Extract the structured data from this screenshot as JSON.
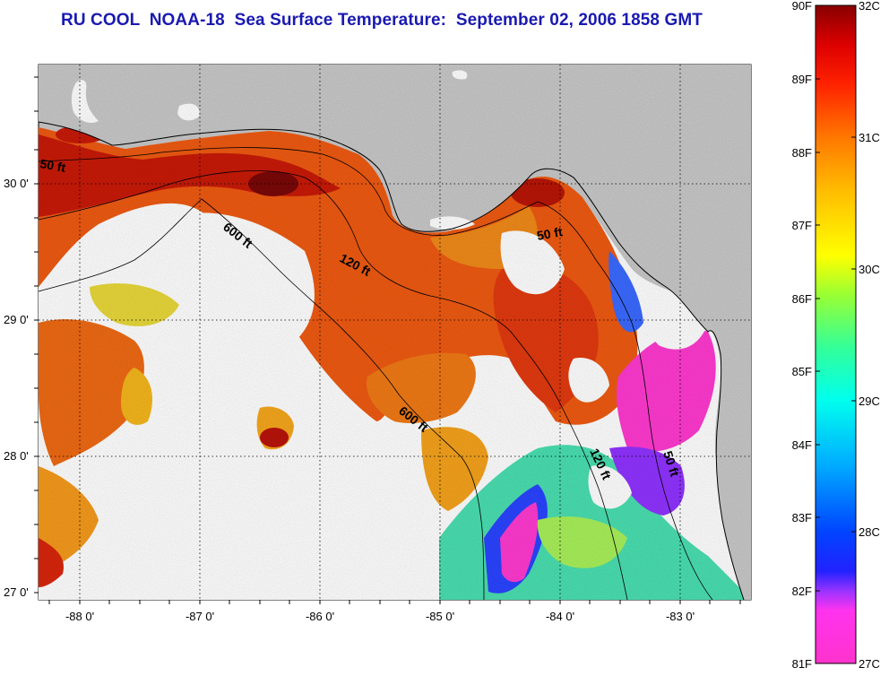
{
  "title": "RU COOL  NOAA-18  Sea Surface Temperature:  September 02, 2006 1858 GMT",
  "axes": {
    "lat_labels": [
      "30 0'",
      "29 0'",
      "28 0'",
      "27 0'"
    ],
    "lat_values": [
      30,
      29,
      28,
      27
    ],
    "lon_labels": [
      "-88 0'",
      "-87 0'",
      "-86 0'",
      "-85 0'",
      "-84 0'",
      "-83 0'"
    ],
    "lon_values": [
      -88,
      -87,
      -86,
      -85,
      -84,
      -83
    ],
    "lat_range": [
      26.97,
      30.95
    ],
    "lon_range": [
      -88.3,
      -82.4
    ]
  },
  "contours": [
    {
      "label": "50 ft"
    },
    {
      "label": "600 ft"
    },
    {
      "label": "120 ft"
    },
    {
      "label": "50 ft"
    },
    {
      "label": "600 ft"
    },
    {
      "label": "120 ft"
    },
    {
      "label": "50 ft"
    }
  ],
  "colorbar": {
    "fahrenheit_labels": [
      "90F",
      "89F",
      "88F",
      "87F",
      "86F",
      "85F",
      "84F",
      "83F",
      "82F",
      "81F"
    ],
    "celsius_labels": [
      "32C",
      "31C",
      "30C",
      "29C",
      "28C",
      "27C"
    ],
    "range_c": [
      27,
      32
    ],
    "range_f": [
      81,
      90
    ]
  },
  "colors": {
    "land": "#c8c8c8",
    "cloud": "#ffffff",
    "title": "#1a1ab0",
    "warm": "#e03d10",
    "cool": "#ff33cc"
  }
}
